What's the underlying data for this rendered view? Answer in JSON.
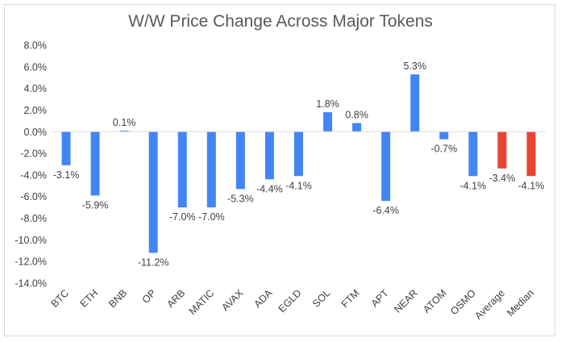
{
  "chart_data": {
    "type": "bar",
    "title": "W/W Price Change Across Major Tokens",
    "xlabel": "",
    "ylabel": "",
    "ylim": [
      -14,
      8
    ],
    "yticks": [
      8,
      6,
      4,
      2,
      0,
      -2,
      -4,
      -6,
      -8,
      -10,
      -12,
      -14
    ],
    "ytick_labels": [
      "8.0%",
      "6.0%",
      "4.0%",
      "2.0%",
      "0.0%",
      "-2.0%",
      "-4.0%",
      "-6.0%",
      "-8.0%",
      "-10.0%",
      "-12.0%",
      "-14.0%"
    ],
    "grid": false,
    "categories": [
      "BTC",
      "ETH",
      "BNB",
      "OP",
      "ARB",
      "MATIC",
      "AVAX",
      "ADA",
      "EGLD",
      "SOL",
      "FTM",
      "APT",
      "NEAR",
      "ATOM",
      "OSMO",
      "Average",
      "Median"
    ],
    "values": [
      -3.1,
      -5.9,
      0.1,
      -11.2,
      -7.0,
      -7.0,
      -5.3,
      -4.4,
      -4.1,
      1.8,
      0.8,
      -6.4,
      5.3,
      -0.7,
      -4.1,
      -3.4,
      -4.1
    ],
    "value_labels": [
      "-3.1%",
      "-5.9%",
      "0.1%",
      "-11.2%",
      "-7.0%",
      "-7.0%",
      "-5.3%",
      "-4.4%",
      "-4.1%",
      "1.8%",
      "0.8%",
      "-6.4%",
      "5.3%",
      "-0.7%",
      "-4.1%",
      "-3.4%",
      "-4.1%"
    ],
    "colors": [
      "#4285F4",
      "#4285F4",
      "#4285F4",
      "#4285F4",
      "#4285F4",
      "#4285F4",
      "#4285F4",
      "#4285F4",
      "#4285F4",
      "#4285F4",
      "#4285F4",
      "#4285F4",
      "#4285F4",
      "#4285F4",
      "#4285F4",
      "#EA4335",
      "#EA4335"
    ],
    "axis_color": "#d9d9d9"
  }
}
